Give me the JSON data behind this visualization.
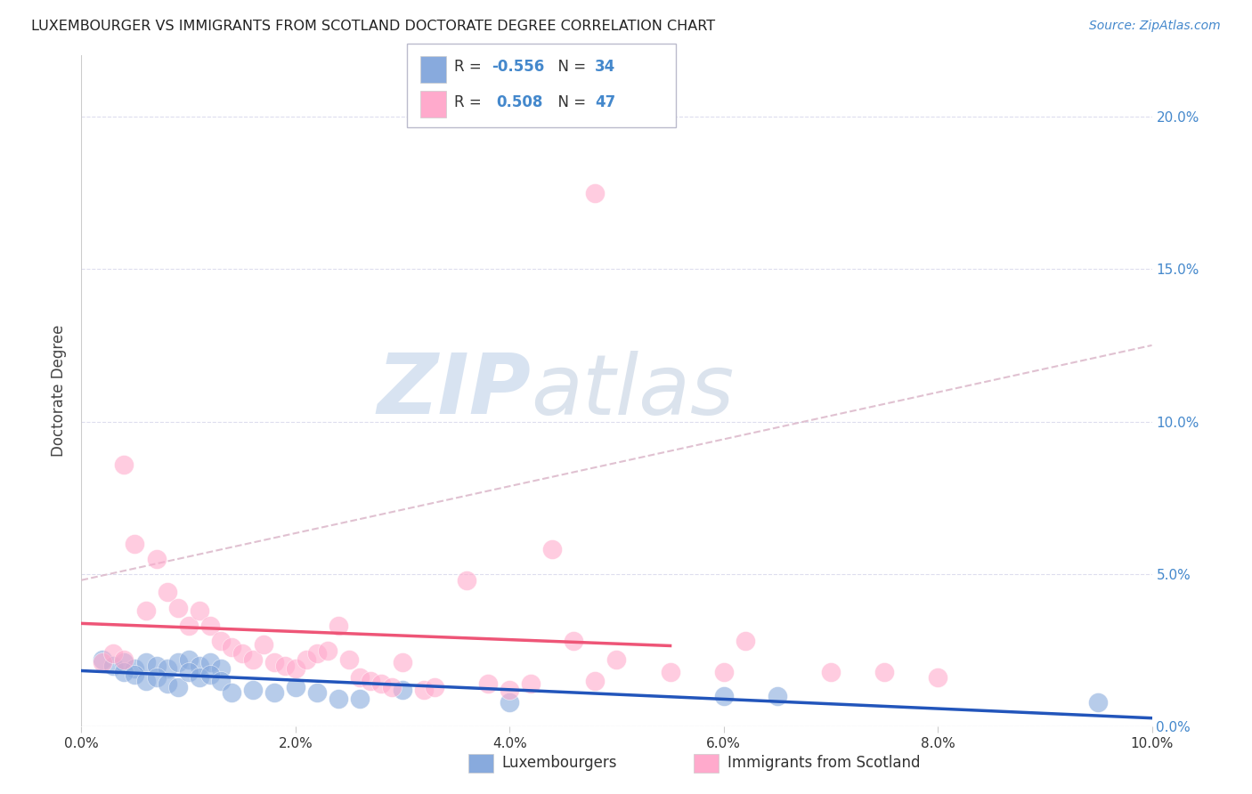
{
  "title": "LUXEMBOURGER VS IMMIGRANTS FROM SCOTLAND DOCTORATE DEGREE CORRELATION CHART",
  "source": "Source: ZipAtlas.com",
  "ylabel": "Doctorate Degree",
  "xlabel": "",
  "xlim": [
    0.0,
    0.1
  ],
  "ylim": [
    0.0,
    0.22
  ],
  "xticks": [
    0.0,
    0.02,
    0.04,
    0.06,
    0.08,
    0.1
  ],
  "yticks": [
    0.0,
    0.05,
    0.1,
    0.15,
    0.2
  ],
  "xtick_labels": [
    "0.0%",
    "2.0%",
    "4.0%",
    "6.0%",
    "8.0%",
    "10.0%"
  ],
  "ytick_labels_right": [
    "0.0%",
    "5.0%",
    "10.0%",
    "15.0%",
    "20.0%"
  ],
  "blue_color": "#88AADD",
  "pink_color": "#FFAACC",
  "blue_line_color": "#2255BB",
  "pink_line_color": "#EE5577",
  "dashed_line_color": "#DDBBCC",
  "background_color": "#FFFFFF",
  "grid_color": "#DDDDEE",
  "title_color": "#222222",
  "axis_label_color": "#444444",
  "right_tick_color": "#4488CC",
  "source_color": "#4488CC",
  "watermark_color": "#D0DFF0",
  "blue_scatter": [
    [
      0.002,
      0.022
    ],
    [
      0.003,
      0.02
    ],
    [
      0.004,
      0.021
    ],
    [
      0.005,
      0.019
    ],
    [
      0.006,
      0.021
    ],
    [
      0.007,
      0.02
    ],
    [
      0.008,
      0.019
    ],
    [
      0.009,
      0.021
    ],
    [
      0.01,
      0.022
    ],
    [
      0.011,
      0.02
    ],
    [
      0.012,
      0.021
    ],
    [
      0.013,
      0.019
    ],
    [
      0.004,
      0.018
    ],
    [
      0.005,
      0.017
    ],
    [
      0.006,
      0.015
    ],
    [
      0.007,
      0.016
    ],
    [
      0.008,
      0.014
    ],
    [
      0.009,
      0.013
    ],
    [
      0.01,
      0.018
    ],
    [
      0.011,
      0.016
    ],
    [
      0.012,
      0.017
    ],
    [
      0.013,
      0.015
    ],
    [
      0.014,
      0.011
    ],
    [
      0.016,
      0.012
    ],
    [
      0.018,
      0.011
    ],
    [
      0.02,
      0.013
    ],
    [
      0.022,
      0.011
    ],
    [
      0.024,
      0.009
    ],
    [
      0.026,
      0.009
    ],
    [
      0.03,
      0.012
    ],
    [
      0.04,
      0.008
    ],
    [
      0.06,
      0.01
    ],
    [
      0.065,
      0.01
    ],
    [
      0.095,
      0.008
    ]
  ],
  "pink_scatter": [
    [
      0.002,
      0.021
    ],
    [
      0.003,
      0.024
    ],
    [
      0.004,
      0.022
    ],
    [
      0.005,
      0.06
    ],
    [
      0.006,
      0.038
    ],
    [
      0.007,
      0.055
    ],
    [
      0.008,
      0.044
    ],
    [
      0.009,
      0.039
    ],
    [
      0.01,
      0.033
    ],
    [
      0.011,
      0.038
    ],
    [
      0.012,
      0.033
    ],
    [
      0.013,
      0.028
    ],
    [
      0.014,
      0.026
    ],
    [
      0.015,
      0.024
    ],
    [
      0.004,
      0.086
    ],
    [
      0.016,
      0.022
    ],
    [
      0.017,
      0.027
    ],
    [
      0.018,
      0.021
    ],
    [
      0.019,
      0.02
    ],
    [
      0.02,
      0.019
    ],
    [
      0.021,
      0.022
    ],
    [
      0.022,
      0.024
    ],
    [
      0.023,
      0.025
    ],
    [
      0.024,
      0.033
    ],
    [
      0.025,
      0.022
    ],
    [
      0.026,
      0.016
    ],
    [
      0.027,
      0.015
    ],
    [
      0.028,
      0.014
    ],
    [
      0.029,
      0.013
    ],
    [
      0.03,
      0.021
    ],
    [
      0.032,
      0.012
    ],
    [
      0.033,
      0.013
    ],
    [
      0.036,
      0.048
    ],
    [
      0.038,
      0.014
    ],
    [
      0.04,
      0.012
    ],
    [
      0.042,
      0.014
    ],
    [
      0.044,
      0.058
    ],
    [
      0.046,
      0.028
    ],
    [
      0.048,
      0.015
    ],
    [
      0.05,
      0.022
    ],
    [
      0.055,
      0.018
    ],
    [
      0.06,
      0.018
    ],
    [
      0.062,
      0.028
    ],
    [
      0.07,
      0.018
    ],
    [
      0.075,
      0.018
    ],
    [
      0.08,
      0.016
    ],
    [
      0.048,
      0.175
    ]
  ],
  "legend_r1_label": "R = ",
  "legend_r1_val": "-0.556",
  "legend_n1_label": "N = ",
  "legend_n1_val": "34",
  "legend_r2_label": "R =  ",
  "legend_r2_val": "0.508",
  "legend_n2_label": "N = ",
  "legend_n2_val": "47"
}
